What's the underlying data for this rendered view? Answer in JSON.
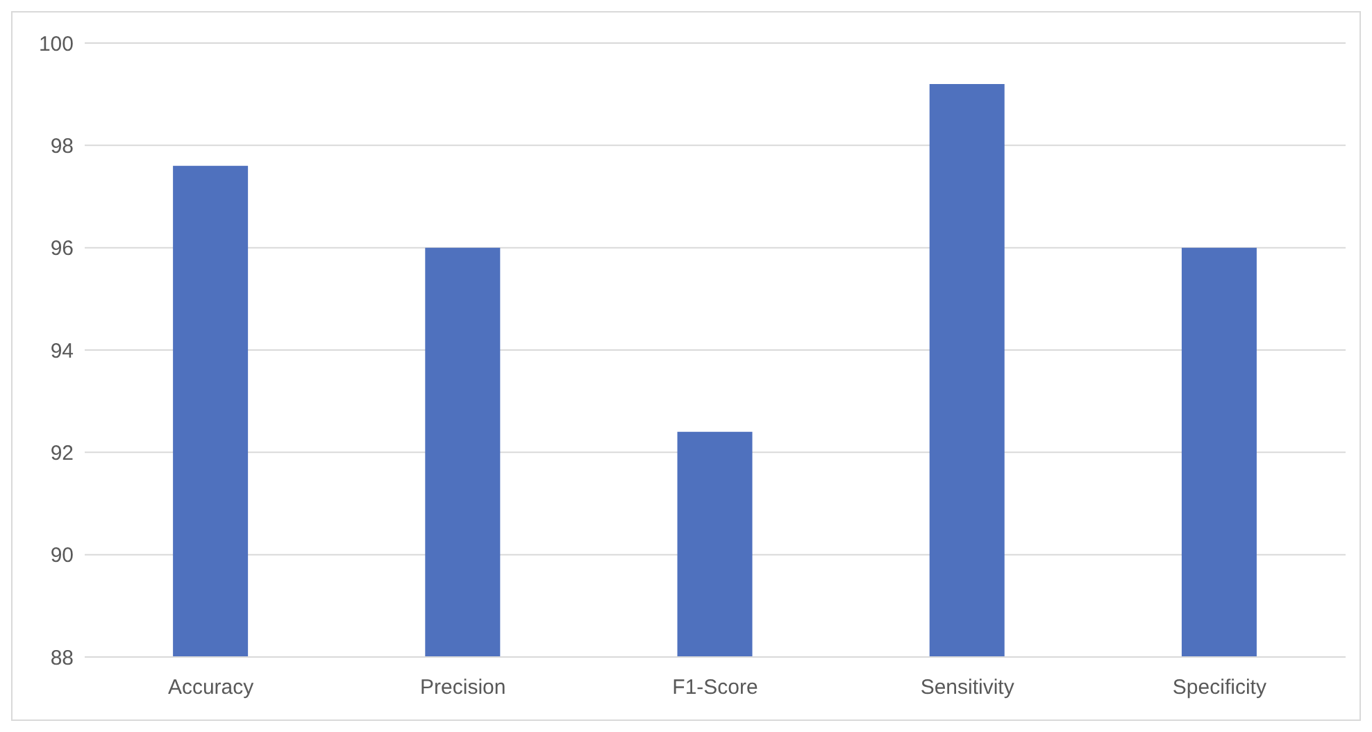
{
  "chart_data": {
    "type": "bar",
    "categories": [
      "Accuracy",
      "Precision",
      "F1-Score",
      "Sensitivity",
      "Specificity"
    ],
    "values": [
      97.6,
      96.0,
      92.4,
      99.2,
      96.0
    ],
    "color": "#4f71be",
    "ylim": [
      88,
      100
    ],
    "yticks": [
      88,
      90,
      92,
      94,
      96,
      98,
      100
    ],
    "grid": "y"
  }
}
